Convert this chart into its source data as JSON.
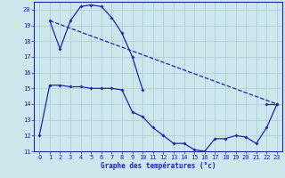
{
  "title": "Graphe des températures (°c)",
  "bg_color": "#cce8ec",
  "grid_color": "#aaccd4",
  "line_color": "#2222aa",
  "ylim": [
    11,
    20.5
  ],
  "xlim": [
    -0.5,
    23.5
  ],
  "yticks": [
    11,
    12,
    13,
    14,
    15,
    16,
    17,
    18,
    19,
    20
  ],
  "xticks": [
    0,
    1,
    2,
    3,
    4,
    5,
    6,
    7,
    8,
    9,
    10,
    11,
    12,
    13,
    14,
    15,
    16,
    17,
    18,
    19,
    20,
    21,
    22,
    23
  ],
  "series1_x": [
    0,
    1,
    2,
    3,
    4,
    5,
    6,
    7,
    8,
    9,
    10,
    11,
    12,
    13,
    14,
    15,
    16,
    17,
    18,
    19,
    20,
    21,
    22,
    23
  ],
  "series1_y": [
    12,
    15.2,
    15.2,
    15.1,
    15.1,
    15.0,
    15.0,
    15.0,
    14.9,
    13.5,
    13.2,
    12.5,
    12.0,
    11.5,
    11.5,
    11.1,
    11.0,
    11.8,
    11.8,
    12.0,
    11.9,
    11.5,
    12.5,
    14.0
  ],
  "series2_x": [
    1,
    2,
    3,
    4,
    5,
    6,
    7,
    8,
    9,
    10
  ],
  "series2_y": [
    19.3,
    17.5,
    19.3,
    20.2,
    20.3,
    20.2,
    19.5,
    18.5,
    17.0,
    14.9
  ],
  "trend_x": [
    1,
    22,
    23
  ],
  "trend_y": [
    19.3,
    14.0,
    14.0
  ],
  "trend_line_x": [
    1,
    23
  ],
  "trend_line_y": [
    19.3,
    14.0
  ]
}
